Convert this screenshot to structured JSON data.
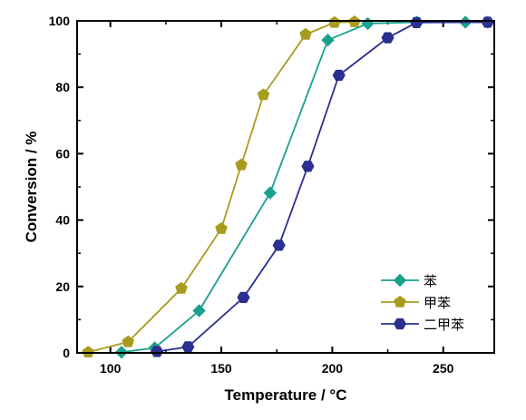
{
  "chart_data": {
    "type": "line",
    "xlabel": "Temperature / °C",
    "ylabel": "Conversion / %",
    "xlim": [
      85,
      273
    ],
    "ylim": [
      0,
      100
    ],
    "xticks": [
      100,
      150,
      200,
      250
    ],
    "yticks": [
      0,
      20,
      40,
      60,
      80,
      100
    ],
    "grid": false,
    "legend_position": "bottom-right",
    "series": [
      {
        "name": "苯",
        "color": "#1aa08c",
        "marker": "diamond",
        "x": [
          105,
          120,
          140,
          172,
          198,
          216,
          238,
          260,
          270
        ],
        "y": [
          0.2,
          1.5,
          12.7,
          48.2,
          94.2,
          99.2,
          99.6,
          99.6,
          99.6
        ]
      },
      {
        "name": "甲苯",
        "color": "#a89c1e",
        "marker": "pentagon",
        "x": [
          90,
          108,
          132,
          150,
          159,
          169,
          188,
          201,
          210
        ],
        "y": [
          0.2,
          3.3,
          19.4,
          37.4,
          56.6,
          77.7,
          95.9,
          99.5,
          99.7
        ]
      },
      {
        "name": "二甲苯",
        "color": "#2b2f8f",
        "marker": "hexagon",
        "x": [
          121,
          135,
          160,
          176,
          189,
          203,
          225,
          238,
          270
        ],
        "y": [
          0.4,
          1.8,
          16.7,
          32.4,
          56.2,
          83.6,
          94.9,
          99.5,
          99.6
        ]
      }
    ]
  }
}
